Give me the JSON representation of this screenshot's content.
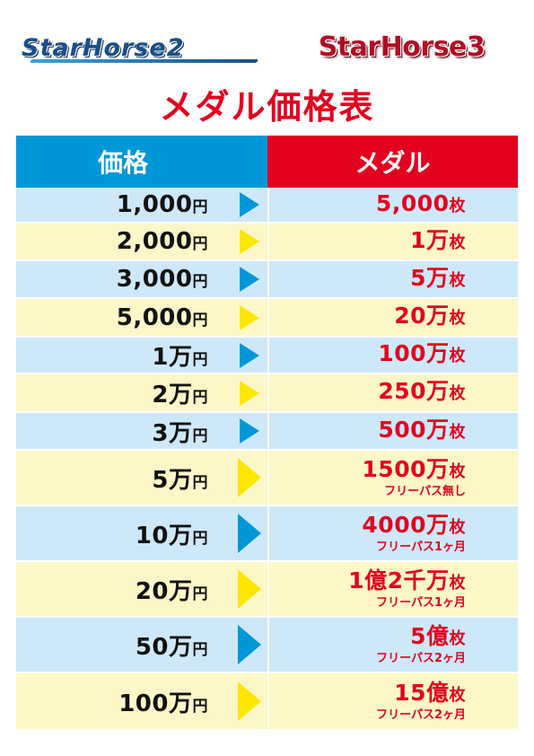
{
  "logos": {
    "starhorse2": "StarHorse2",
    "starhorse3": "StarHorse3"
  },
  "title": "メダル価格表",
  "header": {
    "price": "価格",
    "medal": "メダル"
  },
  "colors": {
    "blue": "#0097d9",
    "red": "#e3001e",
    "yellow_arrow": "#ffe600",
    "row_blue": "#cde9f9",
    "row_yellow": "#fdf7c8"
  },
  "rows": [
    {
      "price": "1,000",
      "price_unit": "円",
      "medal": "5,000",
      "medal_unit": "枚",
      "note": ""
    },
    {
      "price": "2,000",
      "price_unit": "円",
      "medal": "1万",
      "medal_unit": "枚",
      "note": ""
    },
    {
      "price": "3,000",
      "price_unit": "円",
      "medal": "5万",
      "medal_unit": "枚",
      "note": ""
    },
    {
      "price": "5,000",
      "price_unit": "円",
      "medal": "20万",
      "medal_unit": "枚",
      "note": ""
    },
    {
      "price": "1万",
      "price_unit": "円",
      "medal": "100万",
      "medal_unit": "枚",
      "note": ""
    },
    {
      "price": "2万",
      "price_unit": "円",
      "medal": "250万",
      "medal_unit": "枚",
      "note": ""
    },
    {
      "price": "3万",
      "price_unit": "円",
      "medal": "500万",
      "medal_unit": "枚",
      "note": ""
    },
    {
      "price": "5万",
      "price_unit": "円",
      "medal": "1500万",
      "medal_unit": "枚",
      "note": "フリーパス無し"
    },
    {
      "price": "10万",
      "price_unit": "円",
      "medal": "4000万",
      "medal_unit": "枚",
      "note": "フリーパス1ヶ月"
    },
    {
      "price": "20万",
      "price_unit": "円",
      "medal": "1億2千万",
      "medal_unit": "枚",
      "note": "フリーパス1ヶ月"
    },
    {
      "price": "50万",
      "price_unit": "円",
      "medal": "5億",
      "medal_unit": "枚",
      "note": "フリーパス2ヶ月"
    },
    {
      "price": "100万",
      "price_unit": "円",
      "medal": "15億",
      "medal_unit": "枚",
      "note": "フリーパス2ヶ月"
    }
  ]
}
